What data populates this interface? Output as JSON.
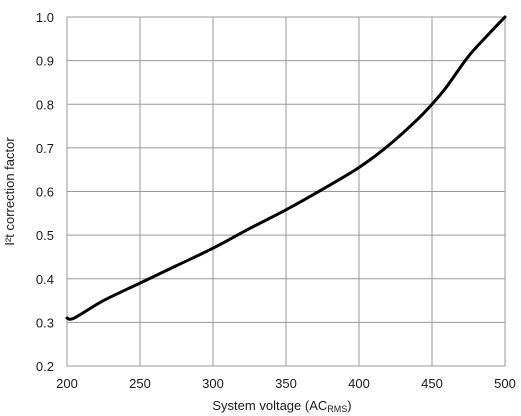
{
  "chart_data": {
    "type": "line",
    "title": "",
    "xlabel": {
      "main": "System voltage (AC",
      "subscript": "RMS",
      "close": ")"
    },
    "ylabel": "I²t correction factor",
    "xlim": [
      200,
      500
    ],
    "ylim": [
      0.2,
      1.0
    ],
    "x_ticks": [
      200,
      250,
      300,
      350,
      400,
      450,
      500
    ],
    "y_ticks": [
      0.2,
      0.3,
      0.4,
      0.5,
      0.6,
      0.7,
      0.8,
      0.9,
      1.0
    ],
    "x_tick_labels": [
      "200",
      "250",
      "300",
      "350",
      "400",
      "450",
      "500"
    ],
    "y_tick_labels": [
      "0.2",
      "0.3",
      "0.4",
      "0.5",
      "0.6",
      "0.7",
      "0.8",
      "0.9",
      "1.0"
    ],
    "grid": true,
    "legend": "none",
    "series": [
      {
        "color": "#000000",
        "x": [
          200,
          205,
          225,
          250,
          275,
          300,
          325,
          350,
          375,
          400,
          420,
          440,
          450,
          460,
          475,
          490,
          500
        ],
        "y": [
          0.31,
          0.31,
          0.35,
          0.39,
          0.43,
          0.47,
          0.515,
          0.558,
          0.605,
          0.655,
          0.705,
          0.765,
          0.8,
          0.84,
          0.91,
          0.965,
          1.0
        ]
      }
    ]
  }
}
